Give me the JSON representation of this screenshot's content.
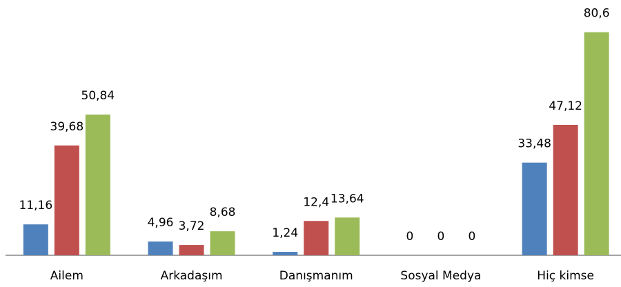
{
  "chart_data": {
    "type": "bar",
    "categories": [
      "Ailem",
      "Arkadaşım",
      "Danışmanım",
      "Sosyal Medya",
      "Hiç kimse"
    ],
    "series": [
      {
        "color": "#4f81bd",
        "values": [
          11.16,
          4.96,
          1.24,
          0,
          33.48
        ],
        "value_labels": [
          "11,16",
          "4,96",
          "1,24",
          "0",
          "33,48"
        ]
      },
      {
        "color": "#c0504d",
        "values": [
          39.68,
          3.72,
          12.4,
          0,
          47.12
        ],
        "value_labels": [
          "39,68",
          "3,72",
          "12,4",
          "0",
          "47,12"
        ]
      },
      {
        "color": "#9bbb59",
        "values": [
          50.84,
          8.68,
          13.64,
          0,
          80.6
        ],
        "value_labels": [
          "50,84",
          "8,68",
          "13,64",
          "0",
          "80,6"
        ]
      }
    ],
    "ylim": [
      0,
      90
    ]
  }
}
